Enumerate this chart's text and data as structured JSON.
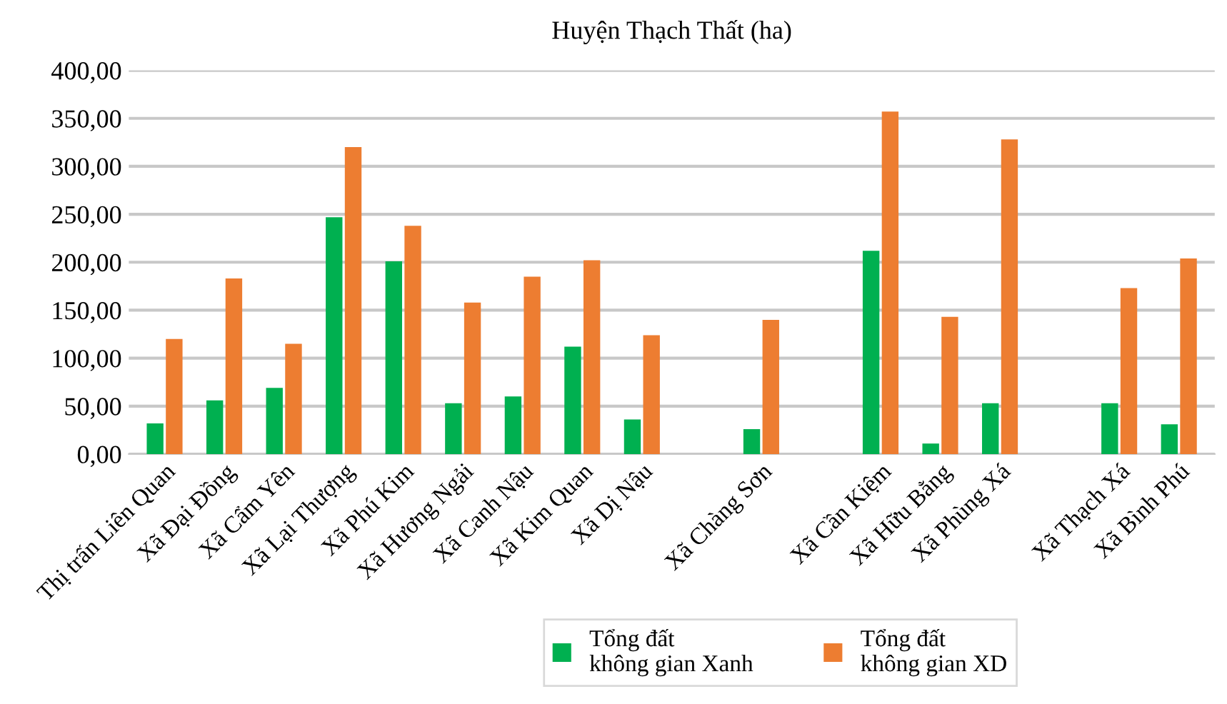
{
  "chart_data": {
    "type": "bar",
    "title": "Huyện Thạch Thất (ha)",
    "categories": [
      "Thị trấn Liên Quan",
      "Xã Đại Đồng",
      "Xã Cẩm Yên",
      "Xã Lại Thượng",
      "Xã Phú Kim",
      "Xã Hương Ngải",
      "Xã Canh Nậu",
      "Xã Kim Quan",
      "Xã Dị Nậu",
      null,
      "Xã Chàng Sơn",
      null,
      "Xã Cần Kiệm",
      "Xã Hữu Bằng",
      "Xã Phùng Xá",
      null,
      "Xã Thạch Xá",
      "Xã Bình Phú"
    ],
    "series": [
      {
        "name": "Tổng đất\nkhông gian Xanh",
        "color": "#00b050",
        "values": [
          32,
          56,
          69,
          247,
          201,
          53,
          60,
          112,
          36,
          null,
          26,
          null,
          212,
          11,
          53,
          null,
          53,
          31
        ]
      },
      {
        "name": "Tổng đất\nkhông gian XD",
        "color": "#ed7d31",
        "values": [
          120,
          183,
          115,
          320,
          238,
          158,
          185,
          202,
          124,
          null,
          140,
          null,
          357,
          143,
          328,
          null,
          173,
          204
        ]
      }
    ],
    "ylim": [
      0,
      400
    ],
    "yticks": [
      {
        "value": 0,
        "label": "0,00"
      },
      {
        "value": 50,
        "label": "50,00"
      },
      {
        "value": 100,
        "label": "100,00"
      },
      {
        "value": 150,
        "label": "150,00"
      },
      {
        "value": 200,
        "label": "200,00"
      },
      {
        "value": 250,
        "label": "250,00"
      },
      {
        "value": 300,
        "label": "300,00"
      },
      {
        "value": 350,
        "label": "350,00"
      },
      {
        "value": 400,
        "label": "400,00"
      }
    ],
    "grid": "y",
    "legend": "bottom"
  }
}
